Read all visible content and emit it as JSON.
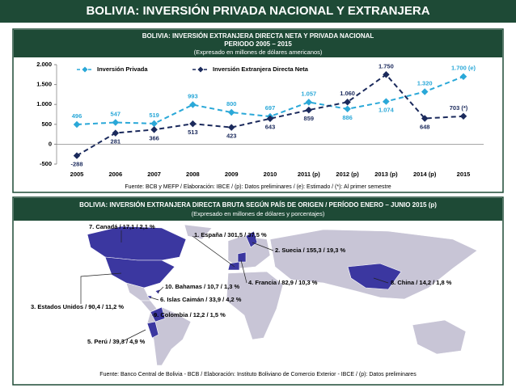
{
  "slide_title": "BOLIVIA: INVERSIÓN PRIVADA NACIONAL Y EXTRANJERA",
  "chart_data": {
    "type": "line",
    "title": "BOLIVIA: INVERSIÓN EXTRANJERA DIRECTA NETA Y PRIVADA NACIONAL",
    "subtitle": "PERIODO 2005 – 2015",
    "unit_note": "(Expresado en millones de dólares americanos)",
    "source": "Fuente: BCB y MEFP / Elaboración: IBCE / (p): Datos preliminares / (e): Estimado / (*): Al primer semestre",
    "categories": [
      "2005",
      "2006",
      "2007",
      "2008",
      "2009",
      "2010",
      "2011 (p)",
      "2012 (p)",
      "2013 (p)",
      "2014 (p)",
      "2015"
    ],
    "series": [
      {
        "name": "Inversión Privada",
        "color": "#2aa8d8",
        "values": [
          496,
          547,
          519,
          993,
          800,
          697,
          1057,
          886,
          1074,
          1320,
          1700
        ],
        "value_labels": [
          "496",
          "547",
          "519",
          "993",
          "800",
          "697",
          "1.057",
          "886",
          "1.074",
          "1.320",
          "1.700 (e)"
        ]
      },
      {
        "name": "Inversión Extranjera Directa Neta",
        "color": "#1b2a5c",
        "values": [
          -288,
          281,
          366,
          513,
          423,
          643,
          859,
          1060,
          1750,
          648,
          703
        ],
        "value_labels": [
          "-288",
          "281",
          "366",
          "513",
          "423",
          "643",
          "859",
          "1.060",
          "1.750",
          "648",
          "703 (*)"
        ]
      }
    ],
    "ylim": [
      -500,
      2000
    ],
    "yticks": [
      -500,
      0,
      500,
      {
        "value": 1000,
        "label": "1.000"
      },
      {
        "value": 1500,
        "label": "1.500"
      },
      {
        "value": 2000,
        "label": "2.000"
      }
    ],
    "grid": false
  },
  "map": {
    "title": "BOLIVIA: INVERSIÓN EXTRANJERA DIRECTA BRUTA SEGÚN PAÍS DE ORIGEN / PERÍODO ENERO – JUNIO 2015 (p)",
    "subtitle": "(Expresado en millones de dólares y porcentajes)",
    "labels": [
      "7. Canadá / 17,1 / 2,1 %",
      "1. España / 301,5 / 37,5 %",
      "2. Suecia / 155,3 / 19,3 %",
      "4. Francia / 82,9 / 10,3 %",
      "8. China / 14,2 / 1,8 %",
      "10. Bahamas / 10,7 / 1,3 %",
      "6. Islas Caimán / 33,9 / 4,2 %",
      "3. Estados Unidos / 90,4 / 11,2 %",
      "9. Colombia / 12,2 / 1,5 %",
      "5. Perú / 39,3 / 4,9 %"
    ],
    "source": "Fuente: Banco Central de Bolivia - BCB / Elaboración: Instituto Boliviano de Comercio Exterior - IBCE / (p): Datos preliminares"
  }
}
